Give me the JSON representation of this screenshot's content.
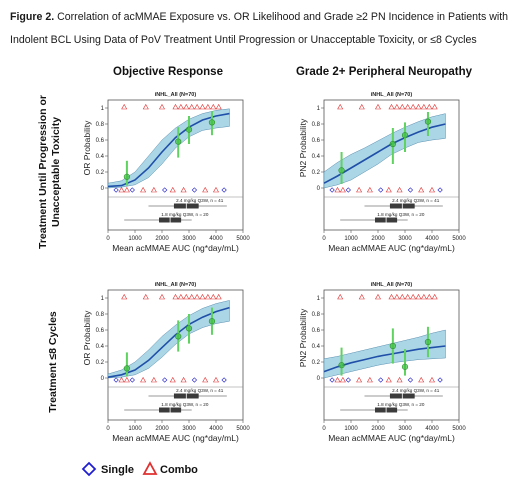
{
  "caption": {
    "label": "Figure 2.",
    "text": "Correlation of acMMAE Exposure vs. OR Likelihood and Grade ≥2 PN Incidence in Patients with Indolent BCL Using Data of PoV Treatment Until Progression or Unacceptable Toxicity, or ≤8 Cycles"
  },
  "col_titles": [
    "Objective Response",
    "Grade 2+ Peripheral Neuropathy"
  ],
  "row_titles": [
    [
      "Treatment Until Progression or",
      "Unacceptable Toxicity"
    ],
    [
      "Treatment ≤8 Cycles"
    ]
  ],
  "legend": {
    "single": "Single",
    "combo": "Combo",
    "single_color": "#1f1fcf",
    "combo_color": "#e03030"
  },
  "colors": {
    "curve": "#1f4fa8",
    "band": "#9ccfe2",
    "observed": "#3dbf3d",
    "ci_line": "#5fd25f"
  },
  "chart_data": [
    {
      "type": "line",
      "panel_label": "iNHL_All (N=70)",
      "title": "Objective Response",
      "xlabel": "Mean acMMAE AUC (ng*day/mL)",
      "ylabel": "OR Probability",
      "xlim": [
        0,
        5000
      ],
      "ylim": [
        0,
        1
      ],
      "xticks": [
        "0",
        "1000",
        "2000",
        "3000",
        "4000",
        "5000"
      ],
      "yticks": [
        "0",
        "0.2",
        "0.4",
        "0.6",
        "0.8",
        "1"
      ],
      "curve": {
        "x": [
          0,
          500,
          1000,
          1500,
          2000,
          2500,
          3000,
          3500,
          4000,
          4500
        ],
        "y": [
          0.02,
          0.03,
          0.1,
          0.25,
          0.45,
          0.63,
          0.76,
          0.85,
          0.9,
          0.93
        ],
        "lower": [
          0.0,
          0.01,
          0.04,
          0.13,
          0.3,
          0.5,
          0.64,
          0.72,
          0.75,
          0.77
        ],
        "upper": [
          0.06,
          0.09,
          0.2,
          0.4,
          0.6,
          0.75,
          0.86,
          0.93,
          0.97,
          0.99
        ]
      },
      "observed": [
        {
          "x": 700,
          "y": 0.14,
          "lo": 0.03,
          "hi": 0.34
        },
        {
          "x": 2600,
          "y": 0.58,
          "lo": 0.38,
          "hi": 0.76
        },
        {
          "x": 3000,
          "y": 0.73,
          "lo": 0.55,
          "hi": 0.9
        },
        {
          "x": 3850,
          "y": 0.82,
          "lo": 0.66,
          "hi": 0.96
        }
      ],
      "dose_boxes": [
        {
          "label": "2.4 mg/kg Q3W, n = 41",
          "whisker": [
            1500,
            4400
          ],
          "box": [
            2450,
            3350
          ],
          "median": 2900
        },
        {
          "label": "1.8 mg/kg Q3W, n = 20",
          "whisker": [
            600,
            3100
          ],
          "box": [
            1900,
            2700
          ],
          "median": 2300
        }
      ]
    },
    {
      "type": "line",
      "panel_label": "iNHL_All (N=70)",
      "title": "Grade 2+ Peripheral Neuropathy",
      "xlabel": "Mean acMMAE AUC (ng*day/mL)",
      "ylabel": "PN2 Probability",
      "xlim": [
        0,
        5000
      ],
      "ylim": [
        0,
        1
      ],
      "xticks": [
        "0",
        "1000",
        "2000",
        "3000",
        "4000",
        "5000"
      ],
      "yticks": [
        "0",
        "0.2",
        "0.4",
        "0.6",
        "0.8",
        "1"
      ],
      "curve": {
        "x": [
          0,
          500,
          1000,
          1500,
          2000,
          2500,
          3000,
          3500,
          4000,
          4500
        ],
        "y": [
          0.06,
          0.15,
          0.25,
          0.35,
          0.45,
          0.55,
          0.63,
          0.7,
          0.76,
          0.8
        ],
        "lower": [
          0.0,
          0.04,
          0.1,
          0.2,
          0.3,
          0.42,
          0.5,
          0.57,
          0.6,
          0.62
        ],
        "upper": [
          0.2,
          0.32,
          0.42,
          0.5,
          0.59,
          0.68,
          0.76,
          0.83,
          0.89,
          0.93
        ]
      },
      "observed": [
        {
          "x": 650,
          "y": 0.22,
          "lo": 0.05,
          "hi": 0.45
        },
        {
          "x": 2550,
          "y": 0.55,
          "lo": 0.3,
          "hi": 0.75
        },
        {
          "x": 3000,
          "y": 0.66,
          "lo": 0.45,
          "hi": 0.82
        },
        {
          "x": 3850,
          "y": 0.83,
          "lo": 0.65,
          "hi": 0.95
        }
      ],
      "dose_boxes": [
        {
          "label": "2.4 mg/kg Q3W, n = 41",
          "whisker": [
            1500,
            4400
          ],
          "box": [
            2450,
            3350
          ],
          "median": 2900
        },
        {
          "label": "1.8 mg/kg Q3W, n = 20",
          "whisker": [
            600,
            3100
          ],
          "box": [
            1900,
            2700
          ],
          "median": 2300
        }
      ]
    },
    {
      "type": "line",
      "panel_label": "iNHL_All (N=70)",
      "title": "Objective Response",
      "xlabel": "Mean acMMAE AUC (ng*day/mL)",
      "ylabel": "OR Probability",
      "xlim": [
        0,
        5000
      ],
      "ylim": [
        0,
        1
      ],
      "xticks": [
        "0",
        "1000",
        "2000",
        "3000",
        "4000",
        "5000"
      ],
      "yticks": [
        "0",
        "0.2",
        "0.4",
        "0.6",
        "0.8",
        "1"
      ],
      "curve": {
        "x": [
          0,
          500,
          1000,
          1500,
          2000,
          2500,
          3000,
          3500,
          4000,
          4500
        ],
        "y": [
          0.01,
          0.04,
          0.1,
          0.22,
          0.38,
          0.54,
          0.67,
          0.76,
          0.83,
          0.88
        ],
        "lower": [
          0.0,
          0.01,
          0.04,
          0.12,
          0.26,
          0.42,
          0.55,
          0.63,
          0.68,
          0.71
        ],
        "upper": [
          0.05,
          0.1,
          0.2,
          0.35,
          0.52,
          0.66,
          0.78,
          0.87,
          0.93,
          0.97
        ]
      },
      "observed": [
        {
          "x": 700,
          "y": 0.12,
          "lo": 0.02,
          "hi": 0.32
        },
        {
          "x": 2600,
          "y": 0.52,
          "lo": 0.33,
          "hi": 0.72
        },
        {
          "x": 3000,
          "y": 0.62,
          "lo": 0.43,
          "hi": 0.8
        },
        {
          "x": 3850,
          "y": 0.71,
          "lo": 0.54,
          "hi": 0.88
        }
      ],
      "dose_boxes": [
        {
          "label": "2.4 mg/kg Q3W, n = 41",
          "whisker": [
            1500,
            4400
          ],
          "box": [
            2450,
            3350
          ],
          "median": 2900
        },
        {
          "label": "1.8 mg/kg Q3W, n = 20",
          "whisker": [
            600,
            3100
          ],
          "box": [
            1900,
            2700
          ],
          "median": 2300
        }
      ]
    },
    {
      "type": "line",
      "panel_label": "iNHL_All (N=70)",
      "title": "Grade 2+ Peripheral Neuropathy",
      "xlabel": "Mean acMMAE AUC (ng*day/mL)",
      "ylabel": "PN2 Probability",
      "xlim": [
        0,
        5000
      ],
      "ylim": [
        0,
        1
      ],
      "xticks": [
        "0",
        "1000",
        "2000",
        "3000",
        "4000",
        "5000"
      ],
      "yticks": [
        "0",
        "0.2",
        "0.4",
        "0.6",
        "0.8",
        "1"
      ],
      "curve": {
        "x": [
          0,
          500,
          1000,
          1500,
          2000,
          2500,
          3000,
          3500,
          4000,
          4500
        ],
        "y": [
          0.08,
          0.14,
          0.19,
          0.23,
          0.27,
          0.3,
          0.33,
          0.36,
          0.38,
          0.4
        ],
        "lower": [
          0.0,
          0.04,
          0.08,
          0.12,
          0.16,
          0.19,
          0.21,
          0.23,
          0.24,
          0.25
        ],
        "upper": [
          0.24,
          0.27,
          0.31,
          0.35,
          0.39,
          0.43,
          0.47,
          0.51,
          0.56,
          0.6
        ]
      },
      "observed": [
        {
          "x": 650,
          "y": 0.16,
          "lo": 0.03,
          "hi": 0.38
        },
        {
          "x": 2550,
          "y": 0.4,
          "lo": 0.18,
          "hi": 0.62
        },
        {
          "x": 3000,
          "y": 0.14,
          "lo": 0.03,
          "hi": 0.36
        },
        {
          "x": 3850,
          "y": 0.45,
          "lo": 0.26,
          "hi": 0.64
        }
      ],
      "dose_boxes": [
        {
          "label": "2.4 mg/kg Q3W, n = 41",
          "whisker": [
            1500,
            4400
          ],
          "box": [
            2450,
            3350
          ],
          "median": 2900
        },
        {
          "label": "1.8 mg/kg Q3W, n = 20",
          "whisker": [
            600,
            3100
          ],
          "box": [
            1900,
            2700
          ],
          "median": 2300
        }
      ]
    }
  ]
}
